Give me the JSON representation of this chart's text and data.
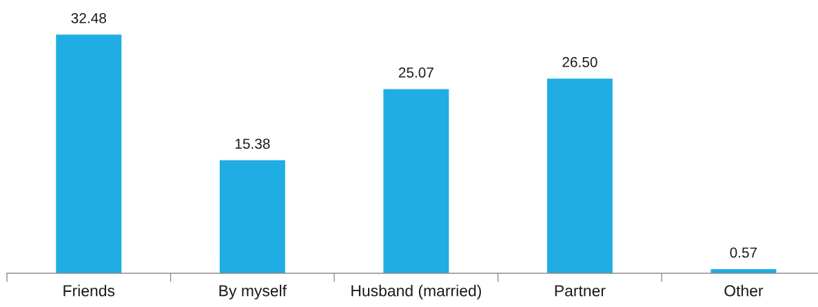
{
  "chart_data": {
    "type": "bar",
    "categories": [
      "Friends",
      "By myself",
      "Husband (married)",
      "Partner",
      "Other"
    ],
    "values": [
      32.48,
      15.38,
      25.07,
      26.5,
      0.57
    ],
    "value_labels": [
      "32.48",
      "15.38",
      "25.07",
      "26.50",
      "0.57"
    ],
    "color": "#1fade3",
    "tick_labels": "x",
    "grid": false,
    "legend": false
  }
}
